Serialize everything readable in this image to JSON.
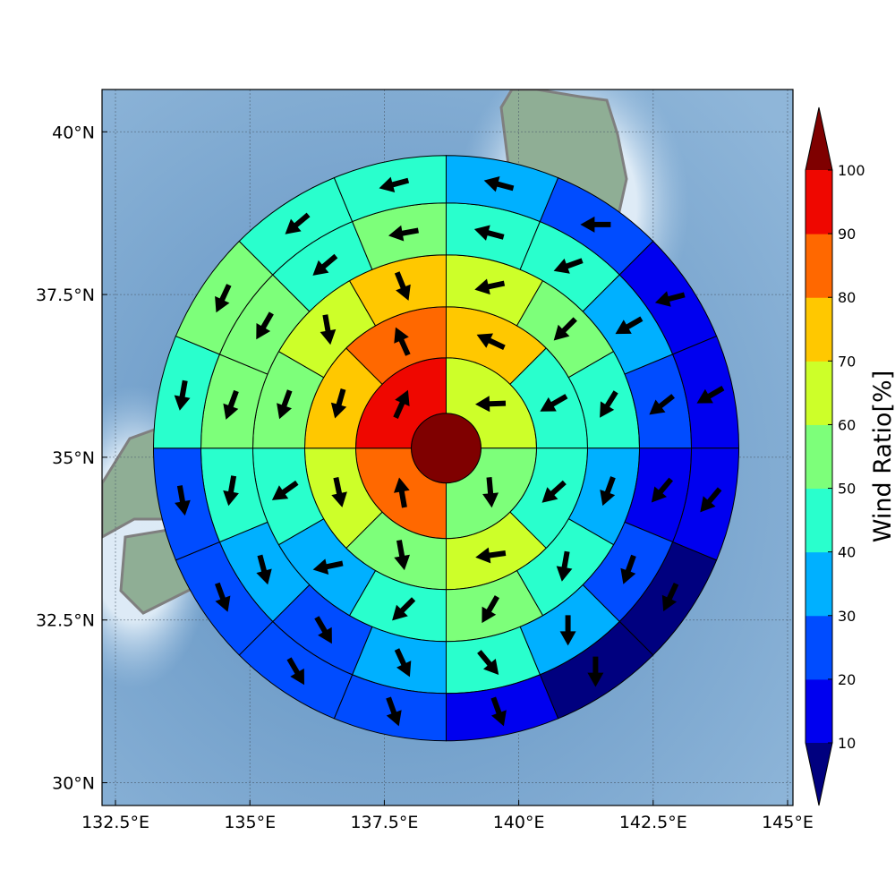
{
  "chart_data": {
    "type": "heatmap",
    "subtype": "polar-sector-map-with-wind-vectors",
    "xlabel": "",
    "ylabel": "",
    "x_ticks": [
      132.5,
      135,
      137.5,
      140,
      142.5,
      145
    ],
    "x_tick_labels": [
      "132.5°E",
      "135°E",
      "137.5°E",
      "140°E",
      "142.5°E",
      "145°E"
    ],
    "y_ticks": [
      30,
      32.5,
      35,
      37.5,
      40
    ],
    "y_tick_labels": [
      "30°N",
      "32.5°N",
      "35°N",
      "37.5°N",
      "40°N"
    ],
    "xlim": [
      132.25,
      145.1
    ],
    "ylim": [
      29.65,
      40.65
    ],
    "grid": true,
    "center": [
      138.65,
      35.14
    ],
    "ring_count": 6,
    "ring_sector_counts": [
      1,
      4,
      8,
      12,
      16,
      16
    ],
    "ring_values": [
      [
        100
      ],
      [
        65,
        55,
        85,
        95
      ],
      [
        75,
        45,
        45,
        65,
        55,
        65,
        75,
        85
      ],
      [
        65,
        55,
        45,
        35,
        45,
        55,
        45,
        35,
        45,
        55,
        65,
        75
      ],
      [
        45,
        45,
        35,
        25,
        15,
        25,
        35,
        45,
        35,
        25,
        35,
        45,
        55,
        55,
        45,
        55
      ],
      [
        35,
        25,
        15,
        15,
        15,
        5,
        5,
        15,
        25,
        25,
        25,
        25,
        45,
        55,
        45,
        45
      ]
    ],
    "ring_arrows": [
      [],
      [
        268,
        175,
        350,
        24
      ],
      [
        295,
        240,
        228,
        262,
        170,
        168,
        196,
        336
      ],
      [
        258,
        225,
        212,
        200,
        190,
        210,
        225,
        258,
        235,
        200,
        170,
        158
      ],
      [
        285,
        250,
        240,
        232,
        220,
        200,
        180,
        140,
        155,
        150,
        165,
        190,
        200,
        210,
        230,
        260
      ],
      [
        285,
        270,
        255,
        240,
        220,
        205,
        180,
        160,
        160,
        150,
        160,
        170,
        190,
        205,
        230,
        255
      ]
    ],
    "colorbar": {
      "label": "Wind Ratio[%]",
      "ticks": [
        10,
        20,
        30,
        40,
        50,
        60,
        70,
        80,
        90,
        100
      ],
      "tick_labels": [
        "10",
        "20",
        "30",
        "40",
        "50",
        "60",
        "70",
        "80",
        "90",
        "100"
      ],
      "range": [
        10,
        100
      ],
      "extend": "both",
      "colors": [
        "#00007f",
        "#0000ef",
        "#004cff",
        "#00b0ff",
        "#29ffcd",
        "#7dff7a",
        "#cdff29",
        "#ffc800",
        "#ff6800",
        "#ef0700",
        "#7f0000"
      ]
    }
  }
}
